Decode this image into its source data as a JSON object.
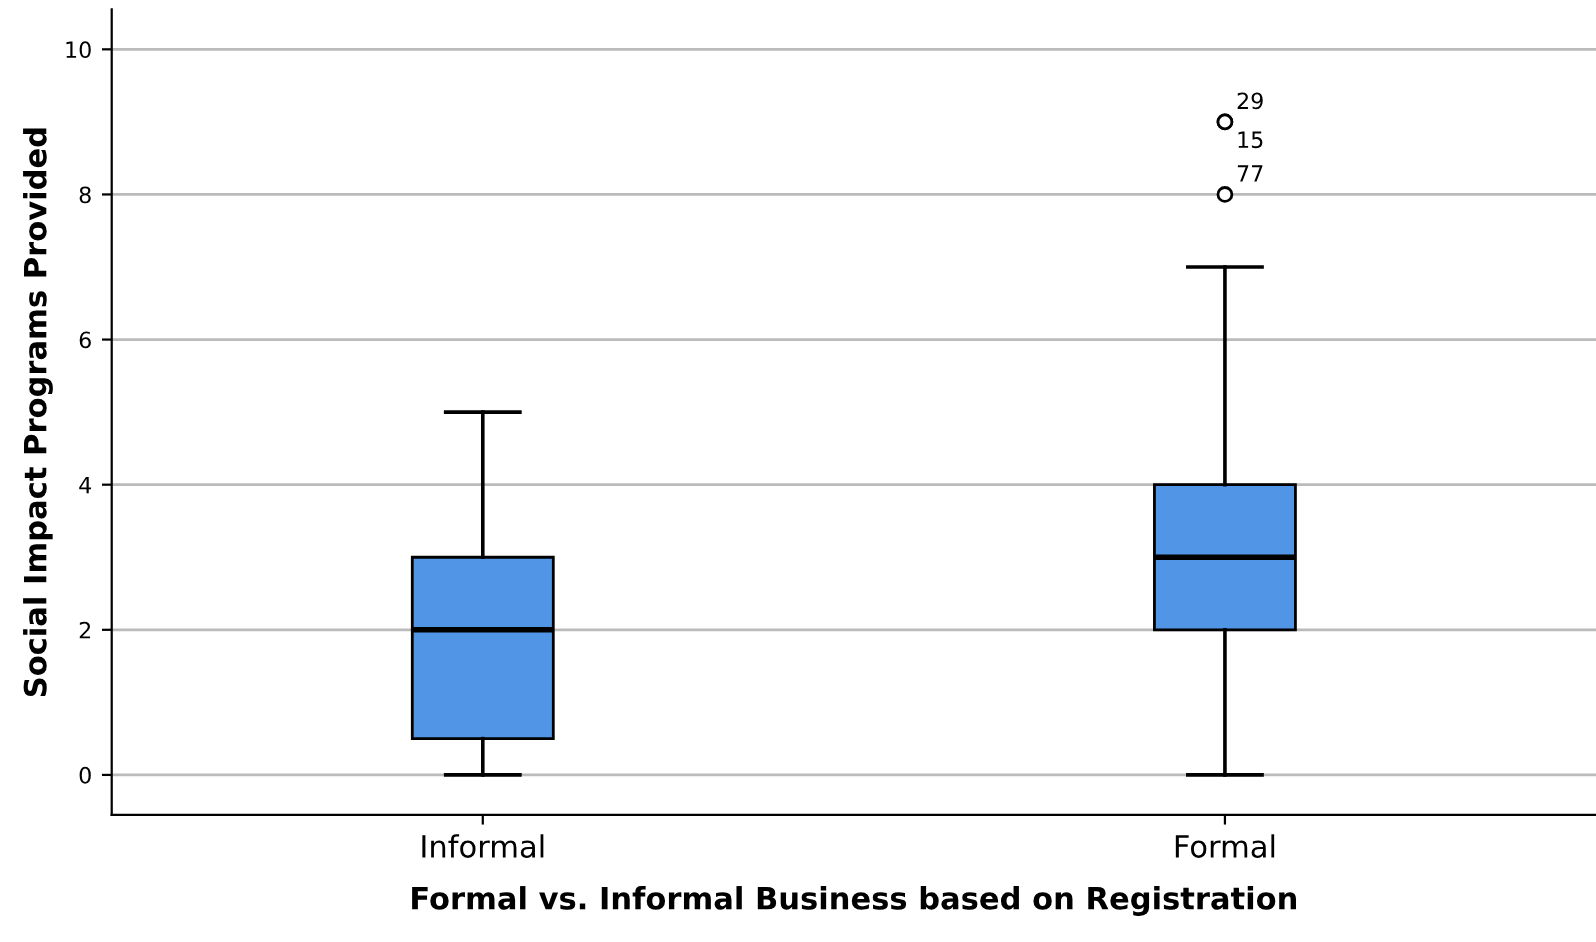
{
  "chart_data": {
    "type": "box",
    "xlabel": "Formal vs. Informal Business based on Registration",
    "ylabel": "Social Impact Programs Provided",
    "categories": [
      "Informal",
      "Formal"
    ],
    "boxes": [
      {
        "low": 0,
        "q1": 0.5,
        "median": 2,
        "q3": 3,
        "high": 5
      },
      {
        "low": 0,
        "q1": 2,
        "median": 3,
        "q3": 4,
        "high": 7,
        "outliers": [
          9,
          9,
          8
        ]
      }
    ],
    "color": "#5195e6",
    "ylim": [
      -0.55,
      10.55
    ],
    "yticks": [
      0,
      2,
      4,
      6,
      8,
      10
    ],
    "grid": "y",
    "annotations": [
      "29",
      "15",
      "77"
    ]
  }
}
